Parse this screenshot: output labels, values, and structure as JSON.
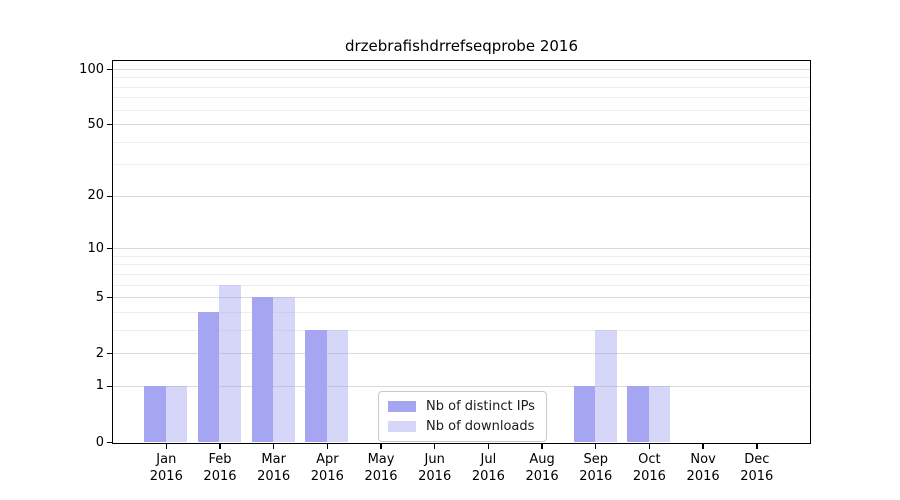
{
  "chart_data": {
    "type": "bar",
    "title": "drzebrafishdrrefseqprobe 2016",
    "categories": [
      "Jan",
      "Feb",
      "Mar",
      "Apr",
      "May",
      "Jun",
      "Jul",
      "Aug",
      "Sep",
      "Oct",
      "Nov",
      "Dec"
    ],
    "year_label": "2016",
    "series": [
      {
        "name": "Nb of distinct IPs",
        "color": "#a5a5f2",
        "opacity": 1,
        "values": [
          1,
          4,
          5,
          3,
          0,
          0,
          0,
          0,
          1,
          1,
          0,
          0
        ]
      },
      {
        "name": "Nb of downloads",
        "color": "#a5a5f2",
        "opacity": 0.45,
        "values": [
          1,
          6,
          5,
          3,
          0,
          0,
          0,
          0,
          3,
          1,
          0,
          0
        ]
      }
    ],
    "yscale": "log1p",
    "ylim": [
      0,
      111
    ],
    "ytick_values": [
      0,
      1,
      2,
      5,
      10,
      20,
      50,
      100
    ],
    "ytick_labels": [
      "0",
      "1",
      "2",
      "5",
      "10",
      "20",
      "50",
      "100"
    ],
    "minor_grid_values": [
      3,
      4,
      6,
      7,
      8,
      9,
      30,
      40,
      60,
      70,
      80,
      90
    ],
    "grid": true,
    "legend_position": "lower center",
    "colors": {
      "distinct_ips_bar": "#a5a5f2",
      "downloads_bar_on_white": "#d8d8f8",
      "major_gridline": "#d9d9d9",
      "minor_gridline": "#ededed",
      "axis": "#000000",
      "legend_border": "#c9c9c9"
    }
  }
}
